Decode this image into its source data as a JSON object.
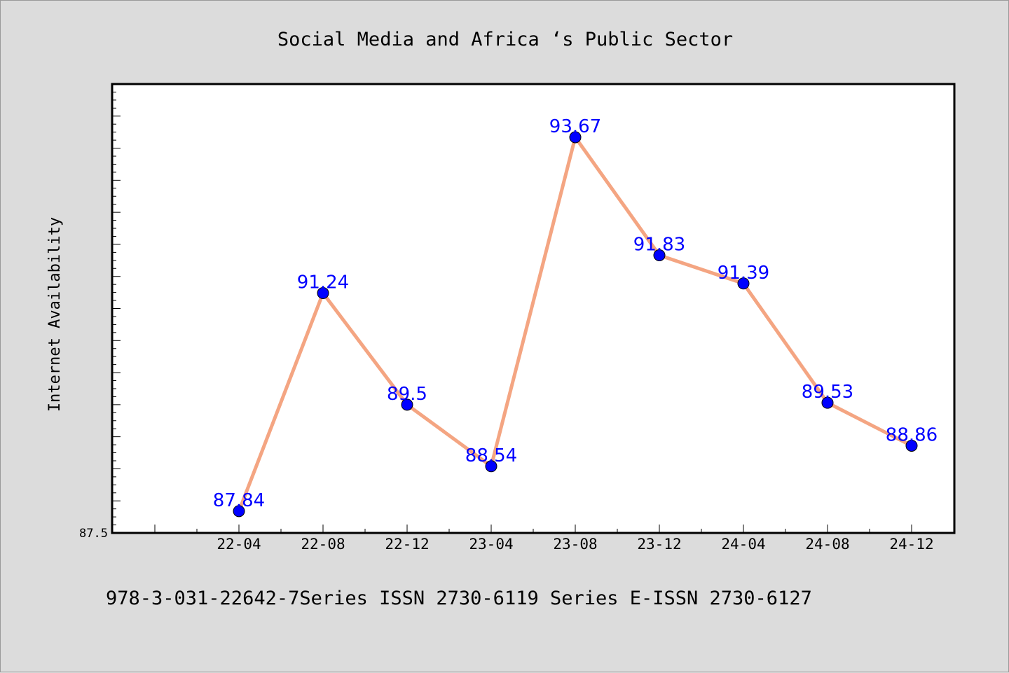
{
  "chart_data": {
    "type": "line",
    "title": "Social Media and Africa ‘s Public Sector",
    "xlabel": "",
    "ylabel": "Internet Availability",
    "categories": [
      "22-04",
      "22-08",
      "22-12",
      "23-04",
      "23-08",
      "23-12",
      "24-04",
      "24-08",
      "24-12"
    ],
    "series": [
      {
        "values": [
          87.84,
          91.24,
          89.5,
          88.54,
          93.67,
          91.83,
          91.39,
          89.53,
          88.86
        ],
        "data_labels": [
          "87.84",
          "91.24",
          "89.5",
          "88.54",
          "93.67",
          "91.83",
          "91.39",
          "89.53",
          "88.86"
        ],
        "line_color": "#f4a582",
        "marker_color": "#0000ff"
      }
    ],
    "y_tick_labels": [
      "87.5"
    ],
    "ylim": [
      87.5,
      94.5
    ],
    "grid": false,
    "legend": "none"
  },
  "footer": {
    "text": "978-3-031-22642-7Series ISSN 2730-6119 Series E-ISSN 2730-6127"
  }
}
